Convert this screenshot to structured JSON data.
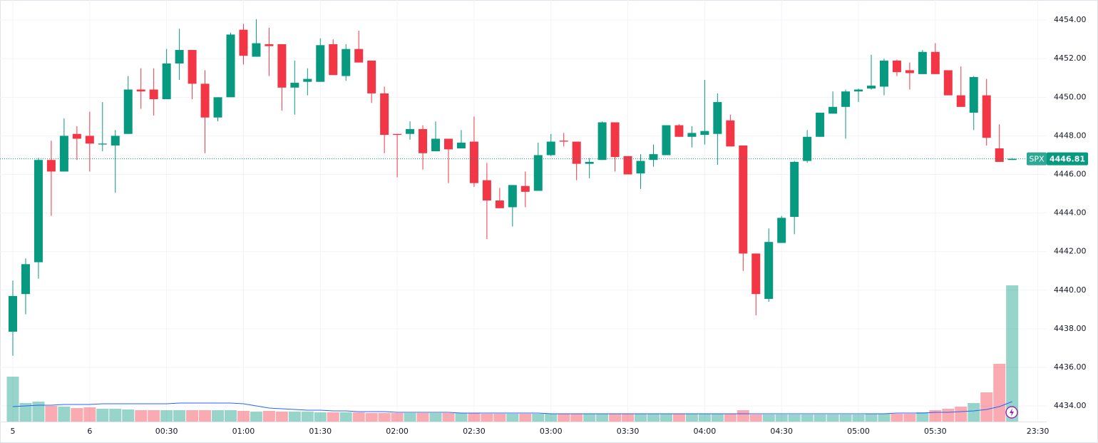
{
  "chart_data": {
    "type": "candlestick",
    "symbol": "SPX",
    "last_price": 4446.81,
    "up_color": "#089981",
    "down_color": "#f23645",
    "volume_ma_color": "#2962ff",
    "grid": true,
    "categories": [
      "5",
      null,
      null,
      null,
      null,
      null,
      "6",
      null,
      null,
      null,
      null,
      null,
      "00:30",
      null,
      null,
      null,
      null,
      null,
      "01:00",
      null,
      null,
      null,
      null,
      null,
      "01:30",
      null,
      null,
      null,
      null,
      null,
      "02:00",
      null,
      null,
      null,
      null,
      null,
      "02:30",
      null,
      null,
      null,
      null,
      null,
      "03:00",
      null,
      null,
      null,
      null,
      null,
      "03:30",
      null,
      null,
      null,
      null,
      null,
      "04:00",
      null,
      null,
      null,
      null,
      null,
      "04:30",
      null,
      null,
      null,
      null,
      null,
      "05:00",
      null,
      null,
      null,
      null,
      null,
      "05:30",
      null,
      null,
      null,
      null,
      null,
      null,
      null,
      "23:30"
    ],
    "open": [
      4437.85,
      4439.8,
      4441.45,
      4446.75,
      4446.15,
      4448.1,
      4448.0,
      4447.55,
      4447.5,
      4448.1,
      4450.4,
      4450.4,
      4449.9,
      4451.75,
      4452.45,
      4450.7,
      4448.95,
      4450.0,
      4453.5,
      4452.1,
      4452.75,
      4452.75,
      4450.5,
      4450.8,
      4450.8,
      4452.75,
      4451.1,
      4452.5,
      4451.9,
      4450.2,
      4448.1,
      4448.1,
      4448.35,
      4447.2,
      4447.85,
      4447.35,
      4447.7,
      4445.7,
      4444.65,
      4444.3,
      4445.4,
      4445.15,
      4447.0,
      4447.75,
      4447.7,
      4446.55,
      4446.75,
      4448.7,
      4446.95,
      4446.05,
      4446.75,
      4447.0,
      4448.55,
      4447.95,
      4448.05,
      4448.1,
      4448.8,
      4447.5,
      4441.9,
      4439.55,
      4442.45,
      4443.8,
      4446.7,
      4447.95,
      4449.15,
      4449.5,
      4450.3,
      4450.45,
      4450.55,
      4451.9,
      4451.4,
      4451.2,
      4452.35,
      4451.4,
      4450.1,
      4449.2,
      4450.1,
      4447.35,
      4446.75,
      null,
      null
    ],
    "high": [
      4440.5,
      4441.65,
      4446.85,
      4447.75,
      4448.9,
      4448.5,
      4449.25,
      4449.75,
      4448.3,
      4451.1,
      4451.5,
      4451.5,
      4452.5,
      4453.55,
      4452.45,
      4451.4,
      4450.0,
      4453.35,
      4453.8,
      4454.05,
      4453.6,
      4452.75,
      4451.9,
      4451.5,
      4453.05,
      4453.0,
      4452.75,
      4453.45,
      4451.9,
      4450.55,
      4448.1,
      4448.75,
      4448.55,
      4448.75,
      4447.85,
      4448.3,
      4449.0,
      4446.6,
      4445.3,
      4445.45,
      4446.15,
      4447.65,
      4448.1,
      4448.15,
      4447.7,
      4446.85,
      4448.75,
      4448.7,
      4446.95,
      4447.05,
      4447.55,
      4448.55,
      4448.6,
      4448.5,
      4450.9,
      4450.2,
      4449.1,
      4447.5,
      4441.9,
      4443.2,
      4443.85,
      4446.7,
      4448.3,
      4449.2,
      4450.3,
      4450.4,
      4450.45,
      4452.2,
      4452.0,
      4451.95,
      4451.8,
      4452.45,
      4452.8,
      4451.4,
      4451.6,
      4451.1,
      4450.95,
      4448.6,
      4446.85,
      null,
      null
    ],
    "low": [
      4436.6,
      4438.75,
      4440.6,
      4443.85,
      4446.15,
      4446.75,
      4446.15,
      4447.2,
      4445.05,
      4448.1,
      4449.4,
      4449.05,
      4449.9,
      4450.9,
      4449.9,
      4447.1,
      4448.75,
      4450.0,
      4451.7,
      4452.1,
      4451.1,
      4449.3,
      4449.1,
      4450.1,
      4450.8,
      4451.15,
      4450.85,
      4451.8,
      4449.7,
      4447.1,
      4445.85,
      4447.8,
      4446.25,
      4447.2,
      4445.55,
      4447.35,
      4445.35,
      4442.65,
      4444.25,
      4443.3,
      4444.3,
      4445.15,
      4446.95,
      4447.45,
      4445.7,
      4445.8,
      4446.75,
      4446.15,
      4446.0,
      4445.25,
      4446.4,
      4447.0,
      4447.95,
      4447.4,
      4447.55,
      4446.5,
      4447.45,
      4441.0,
      4438.7,
      4439.4,
      4442.45,
      4442.9,
      4446.6,
      4447.95,
      4449.15,
      4447.85,
      4449.75,
      4450.4,
      4450.1,
      4451.1,
      4450.4,
      4451.2,
      4451.2,
      4450.1,
      4449.5,
      4448.3,
      4447.5,
      4446.65,
      4446.75,
      null,
      null
    ],
    "close": [
      4439.7,
      4441.35,
      4446.75,
      4446.15,
      4448.0,
      4447.85,
      4447.6,
      4447.6,
      4448.0,
      4450.4,
      4450.3,
      4449.9,
      4451.75,
      4452.45,
      4450.7,
      4448.95,
      4450.0,
      4453.25,
      4452.15,
      4452.8,
      4452.65,
      4450.5,
      4450.75,
      4450.95,
      4452.7,
      4451.15,
      4452.5,
      4451.8,
      4450.2,
      4448.05,
      4448.05,
      4448.35,
      4447.1,
      4447.85,
      4447.3,
      4447.65,
      4445.55,
      4444.65,
      4444.25,
      4445.45,
      4445.1,
      4447.0,
      4447.7,
      4447.7,
      4446.55,
      4446.65,
      4448.7,
      4446.9,
      4446.0,
      4446.7,
      4447.05,
      4448.55,
      4447.95,
      4448.15,
      4448.25,
      4449.75,
      4447.45,
      4441.9,
      4439.8,
      4442.5,
      4443.75,
      4446.65,
      4447.95,
      4449.2,
      4449.5,
      4450.3,
      4450.4,
      4450.6,
      4451.9,
      4451.3,
      4451.25,
      4452.35,
      4451.2,
      4450.1,
      4449.5,
      4451.05,
      4447.9,
      4446.65,
      4446.81,
      null,
      null
    ],
    "volume": [
      63,
      26,
      28,
      22,
      21,
      19,
      20,
      18,
      18,
      17,
      16,
      16,
      16,
      16,
      16,
      16,
      16,
      16,
      15,
      14,
      15,
      14,
      14,
      14,
      13,
      13,
      13,
      13,
      12,
      12,
      12,
      12,
      12,
      12,
      12,
      12,
      12,
      11,
      11,
      11,
      11,
      11,
      11,
      11,
      11,
      11,
      11,
      11,
      11,
      11,
      11,
      11,
      11,
      11,
      11,
      11,
      11,
      16,
      10,
      10,
      10,
      10,
      10,
      10,
      10,
      10,
      10,
      11,
      11,
      11,
      11,
      13,
      16,
      18,
      21,
      26,
      41,
      81,
      191,
      null,
      null
    ],
    "volume_ma": [
      21,
      22,
      23,
      23,
      24,
      24,
      24,
      25,
      25,
      25,
      25,
      25,
      25,
      26,
      26,
      26,
      26,
      26,
      25,
      22,
      19,
      18,
      17,
      16,
      16,
      15,
      15,
      14,
      14,
      14,
      13,
      13,
      13,
      13,
      13,
      12,
      12,
      12,
      12,
      12,
      12,
      12,
      11,
      11,
      11,
      11,
      11,
      11,
      11,
      11,
      11,
      11,
      11,
      11,
      11,
      11,
      11,
      11,
      11,
      11,
      11,
      11,
      11,
      11,
      11,
      11,
      11,
      11,
      11,
      12,
      12,
      12,
      13,
      13,
      14,
      15,
      17,
      21,
      28,
      null,
      null
    ],
    "ylim": [
      4433.19,
      4455.04
    ],
    "yticks": [
      {
        "value": 4434,
        "label": "4434.00"
      },
      {
        "value": 4436,
        "label": "4436.00"
      },
      {
        "value": 4438,
        "label": "4438.00"
      },
      {
        "value": 4440,
        "label": "4440.00"
      },
      {
        "value": 4442,
        "label": "4442.00"
      },
      {
        "value": 4444,
        "label": "4444.00"
      },
      {
        "value": 4446,
        "label": "4446.00"
      },
      {
        "value": 4448,
        "label": "4448.00"
      },
      {
        "value": 4450,
        "label": "4450.00"
      },
      {
        "value": 4452,
        "label": "4452.00"
      },
      {
        "value": 4454,
        "label": "4454.00"
      }
    ]
  }
}
